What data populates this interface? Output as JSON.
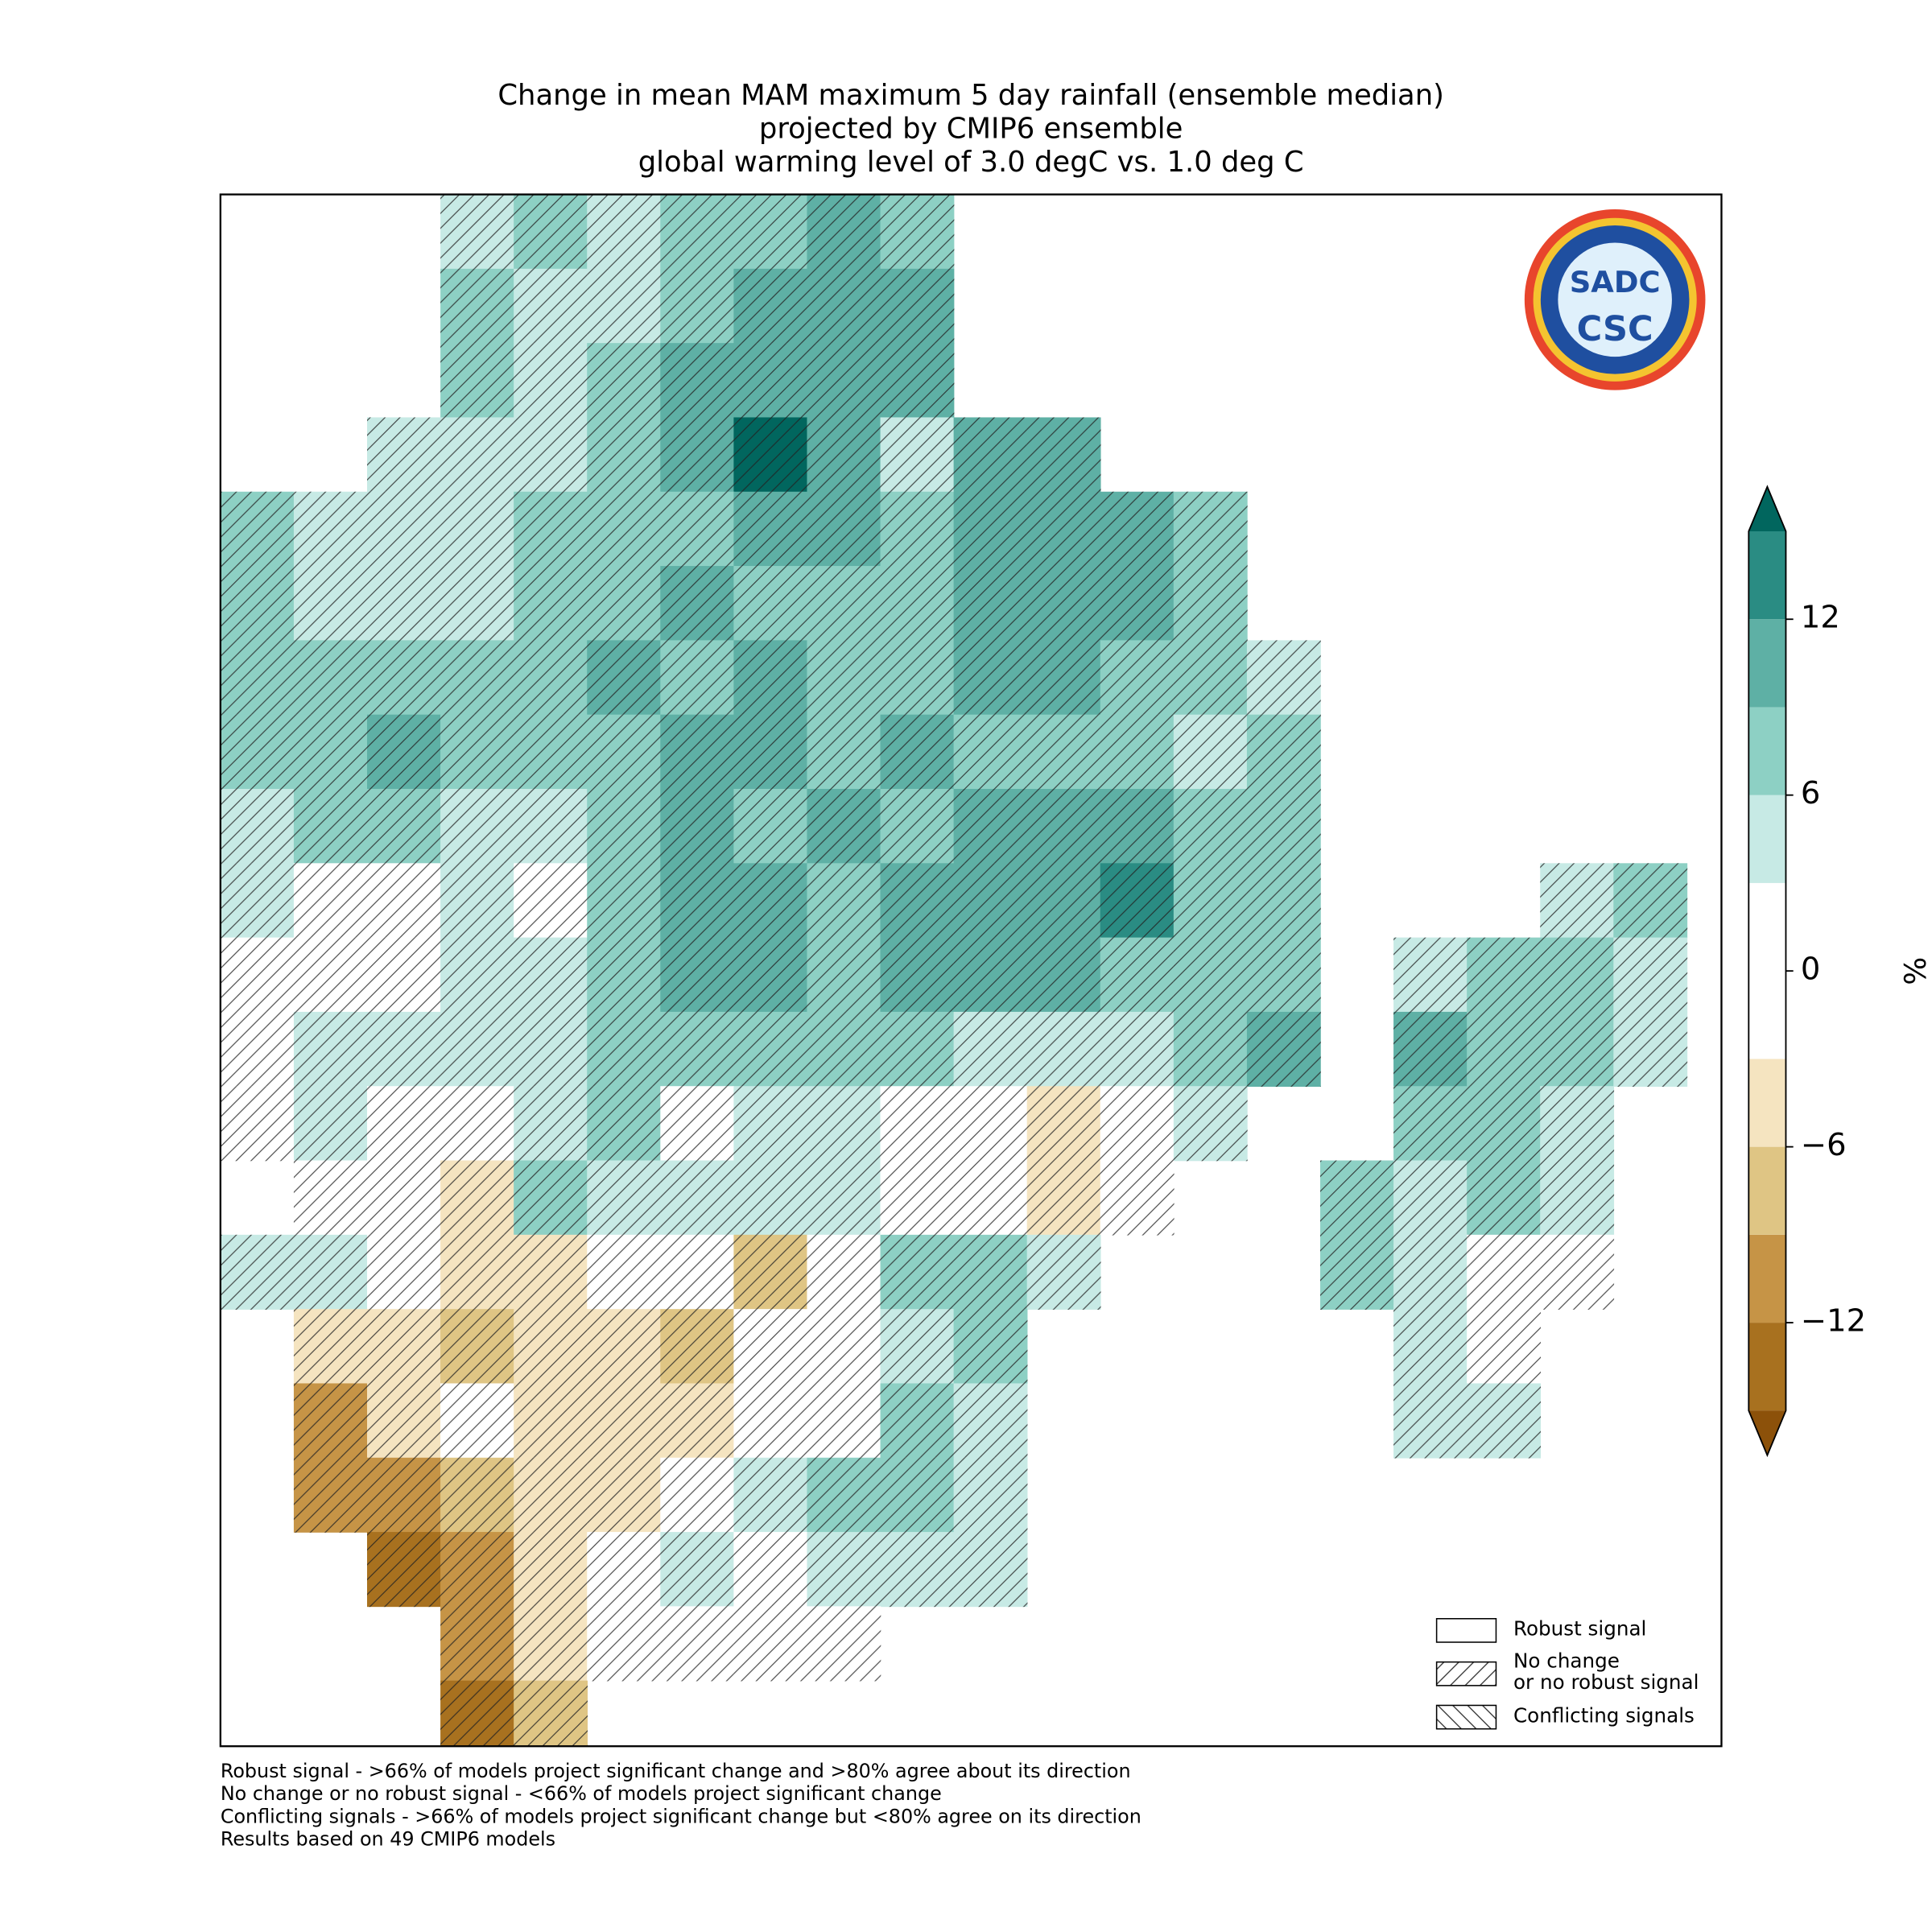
{
  "title": [
    "Change in mean MAM maximum 5 day rainfall (ensemble median)",
    "projected by CMIP6 ensemble",
    "global warming level of 3.0 degC vs. 1.0 deg C"
  ],
  "logo": {
    "top": "SADC",
    "bottom": "CSC"
  },
  "map": {
    "grid": [
      [
        null,
        null,
        null,
        6,
        7,
        6,
        7,
        8,
        10,
        7,
        null,
        null,
        null,
        null,
        null,
        null,
        null,
        null,
        null,
        null
      ],
      [
        null,
        null,
        null,
        7,
        6,
        6,
        8,
        11,
        11,
        11,
        null,
        null,
        null,
        null,
        null,
        null,
        null,
        null,
        null,
        null
      ],
      [
        null,
        null,
        null,
        7,
        5,
        7,
        10,
        12,
        11,
        10,
        null,
        null,
        null,
        null,
        null,
        null,
        null,
        null,
        null,
        null
      ],
      [
        null,
        null,
        5,
        5,
        5,
        8,
        10,
        16,
        11,
        4,
        12,
        12,
        null,
        null,
        null,
        null,
        null,
        null,
        null,
        null
      ],
      [
        7,
        6,
        5,
        4,
        7,
        8,
        9,
        10,
        10,
        8,
        12,
        12,
        10,
        8,
        null,
        null,
        null,
        null,
        null,
        null
      ],
      [
        8,
        6,
        6,
        6,
        7,
        8,
        10,
        9,
        9,
        8,
        12,
        11,
        11,
        7,
        null,
        null,
        null,
        null,
        null,
        null
      ],
      [
        8,
        7,
        8,
        7,
        8,
        10,
        8,
        10,
        9,
        8,
        11,
        11,
        9,
        8,
        4,
        null,
        null,
        null,
        null,
        null
      ],
      [
        7,
        7,
        10,
        8,
        8,
        9,
        10,
        10,
        9,
        10,
        9,
        9,
        9,
        6,
        8,
        null,
        null,
        null,
        null,
        null
      ],
      [
        6,
        8,
        7,
        6,
        5,
        8,
        10,
        9,
        10,
        9,
        12,
        11,
        11,
        9,
        8,
        null,
        null,
        null,
        null,
        null
      ],
      [
        5,
        2,
        2,
        5,
        3,
        7,
        11,
        10,
        9,
        10,
        10,
        12,
        13,
        9,
        8,
        null,
        null,
        null,
        6,
        8
      ],
      [
        1,
        3,
        2,
        5,
        6,
        9,
        11,
        11,
        9,
        11,
        10,
        10,
        8,
        9,
        8,
        null,
        6,
        7,
        8,
        4
      ],
      [
        2,
        6,
        5,
        5,
        5,
        8,
        8,
        7,
        9,
        8,
        6,
        4,
        4,
        7,
        10,
        null,
        10,
        9,
        7,
        5
      ],
      [
        3,
        4,
        2,
        2,
        4,
        8,
        2,
        5,
        4,
        2,
        3,
        -3,
        3,
        4,
        null,
        null,
        8,
        7,
        5,
        null
      ],
      [
        null,
        2,
        1,
        -3,
        7,
        6,
        6,
        4,
        5,
        3,
        3,
        -4,
        2,
        null,
        null,
        8,
        6,
        7,
        5,
        null
      ],
      [
        4,
        4,
        2,
        -5,
        -5,
        2,
        3,
        -6,
        3,
        7,
        7,
        4,
        null,
        null,
        null,
        8,
        5,
        2,
        3,
        null
      ],
      [
        null,
        -4,
        -4,
        -6,
        -3,
        -4,
        -6,
        2,
        2,
        6,
        7,
        null,
        null,
        null,
        null,
        null,
        5,
        3,
        null,
        null
      ],
      [
        null,
        -10,
        -4,
        1,
        -3,
        -3,
        -3,
        2,
        3,
        7,
        6,
        null,
        null,
        null,
        null,
        null,
        5,
        4,
        null,
        null
      ],
      [
        null,
        -11,
        -10,
        -6,
        -4,
        -3,
        2,
        4,
        7,
        7,
        6,
        null,
        null,
        null,
        null,
        null,
        null,
        null,
        null,
        null
      ],
      [
        null,
        null,
        -13,
        -9,
        -5,
        1,
        4,
        3,
        5,
        6,
        4,
        null,
        null,
        null,
        null,
        null,
        null,
        null,
        null,
        null
      ],
      [
        null,
        null,
        null,
        -10,
        -5,
        1,
        1,
        1,
        3,
        null,
        null,
        null,
        null,
        null,
        null,
        null,
        null,
        null,
        null,
        null
      ],
      [
        null,
        null,
        null,
        -13,
        -8,
        null,
        null,
        null,
        null,
        null,
        null,
        null,
        null,
        null,
        null,
        null,
        null,
        null,
        null,
        null
      ]
    ]
  },
  "colorbar": {
    "levels": [
      -15,
      -12,
      -9,
      -6,
      -3,
      3,
      6,
      9,
      12,
      15
    ],
    "colors": [
      "#a8711f",
      "#c69446",
      "#dfc584",
      "#f5e4c0",
      "#ffffff",
      "#c7eae5",
      "#8dd0c4",
      "#5eb0a5",
      "#2a8c83"
    ],
    "under": "#8c510a",
    "over": "#01665e",
    "ticks": [
      {
        "value": -12,
        "label": "−12"
      },
      {
        "value": -6,
        "label": "−6"
      },
      0,
      6,
      12
    ],
    "label": "%"
  },
  "legend": [
    {
      "label": "Robust signal",
      "hatch": "none"
    },
    {
      "label": [
        "No change",
        "or no robust signal"
      ],
      "hatch": "forward"
    },
    {
      "label": "Conflicting signals",
      "hatch": "back"
    }
  ],
  "footnotes": [
    "Robust signal - >66% of models project significant change and >80% agree about its direction",
    "No change or no robust signal - <66% of models project significant change",
    "Conflicting signals - >66% of models project significant change but <80% agree on its direction",
    "Results based on 49 CMIP6 models"
  ]
}
